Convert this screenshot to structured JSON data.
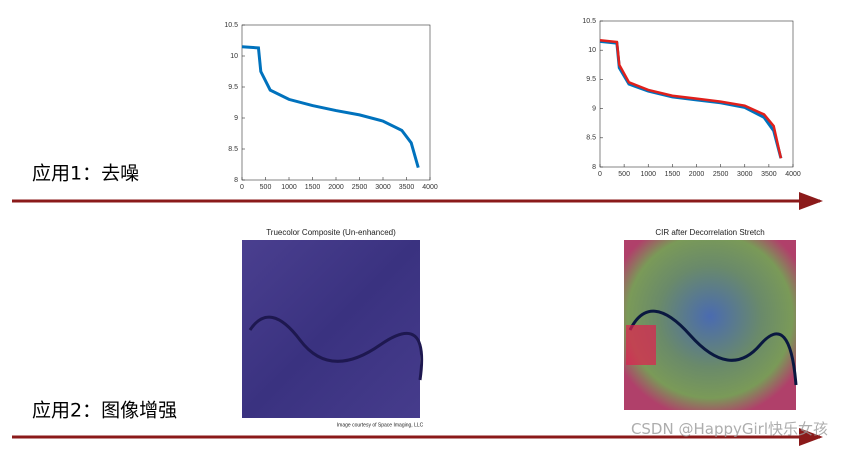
{
  "chart_data": [
    {
      "type": "line",
      "x": [
        0,
        350,
        400,
        600,
        1000,
        1500,
        2000,
        2500,
        3000,
        3400,
        3600,
        3750
      ],
      "series": [
        {
          "color": "#0072bd",
          "values": [
            10.15,
            10.13,
            9.75,
            9.45,
            9.3,
            9.2,
            9.12,
            9.05,
            8.95,
            8.8,
            8.6,
            8.2
          ]
        }
      ],
      "xlim": [
        0,
        4000
      ],
      "xticks": [
        0,
        500,
        1000,
        1500,
        2000,
        2500,
        3000,
        3500,
        4000
      ],
      "ylim": [
        8,
        10.5
      ],
      "yticks": [
        8,
        8.5,
        9,
        9.5,
        10,
        10.5
      ]
    },
    {
      "type": "line",
      "x": [
        0,
        350,
        400,
        600,
        1000,
        1500,
        2000,
        2500,
        3000,
        3400,
        3600,
        3750
      ],
      "series": [
        {
          "color": "#0072bd",
          "values": [
            10.15,
            10.12,
            9.7,
            9.42,
            9.3,
            9.2,
            9.15,
            9.1,
            9.02,
            8.85,
            8.62,
            8.15
          ]
        },
        {
          "color": "#e0201b",
          "values": [
            10.17,
            10.14,
            9.75,
            9.45,
            9.32,
            9.22,
            9.17,
            9.12,
            9.05,
            8.9,
            8.7,
            8.15
          ]
        }
      ],
      "xlim": [
        0,
        4000
      ],
      "xticks": [
        0,
        500,
        1000,
        1500,
        2000,
        2500,
        3000,
        3500,
        4000
      ],
      "ylim": [
        8,
        10.5
      ],
      "yticks": [
        8,
        8.5,
        9,
        9.5,
        10,
        10.5
      ]
    }
  ],
  "images": [
    {
      "title": "Truecolor Composite (Un-enhanced)",
      "caption": "Image courtesy of Space Imaging, LLC"
    },
    {
      "title": "CIR after Decorrelation Stretch"
    }
  ],
  "labels": [
    "应用1：去噪",
    "应用2：图像增强"
  ],
  "watermark": "CSDN @HappyGirl快乐女孩"
}
